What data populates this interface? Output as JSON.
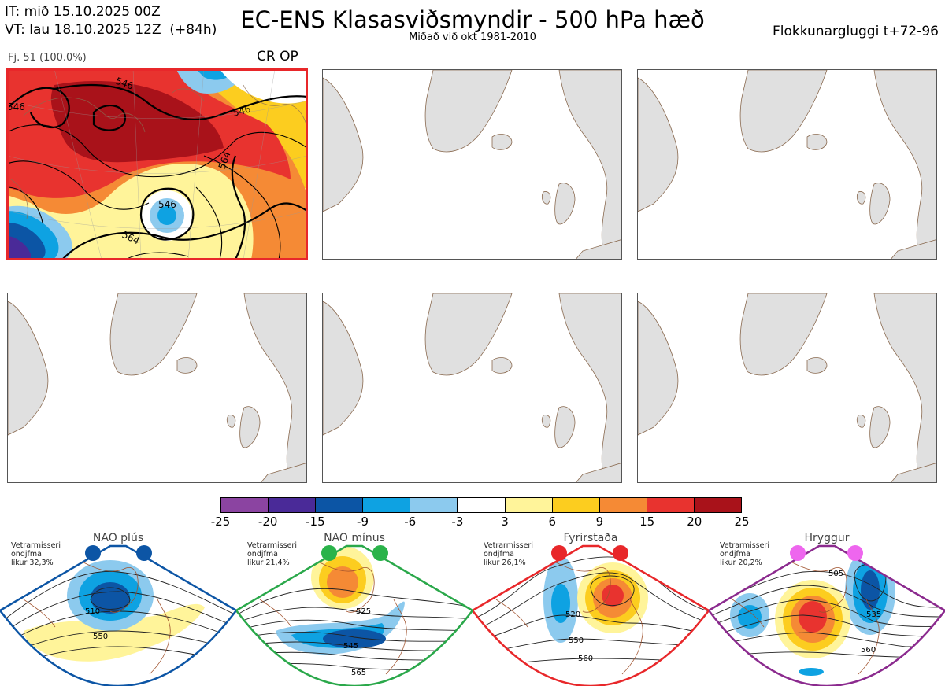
{
  "header": {
    "it_line": "IT: mið 15.10.2025 00Z",
    "vt_line": "VT: lau 18.10.2025 12Z  (+84h)",
    "title": "EC-ENS Klasasviðsmyndir - 500 hPa hæð",
    "subtitle": "Miðað við okt 1981-2010",
    "window": "Flokkunargluggi t+72-96"
  },
  "cluster1": {
    "members": "Fj. 51 (100.0%)",
    "tag": "CR OP",
    "highlight_color": "#e8272a",
    "contour_labels": [
      "546",
      "546",
      "546",
      "564",
      "546",
      "564"
    ]
  },
  "colorbar": {
    "colors": [
      "#8b44a1",
      "#4a2a98",
      "#0c55a5",
      "#0ea2e2",
      "#8ccaee",
      "#ffffff",
      "#fff49a",
      "#fccd1f",
      "#f58a35",
      "#e8332f",
      "#a9121a"
    ],
    "ticks": [
      "-25",
      "-20",
      "-15",
      "-9",
      "-6",
      "-3",
      "3",
      "6",
      "9",
      "15",
      "20",
      "25"
    ]
  },
  "regimes": [
    {
      "name": "NAO plús",
      "desc": [
        "Vetrarmisseri",
        "ondjfma",
        "líkur 32,3%"
      ],
      "color": "#0c55a5",
      "dot_color": "#0c55a5",
      "labels": [
        "510",
        "550"
      ]
    },
    {
      "name": "NAO mínus",
      "desc": [
        "Vetrarmisseri",
        "ondjfma",
        "líkur 21,4%"
      ],
      "color": "#2aa84a",
      "dot_color": "#2ab34a",
      "labels": [
        "525",
        "545",
        "565"
      ]
    },
    {
      "name": "Fyrirstaða",
      "desc": [
        "Vetrarmisseri",
        "ondjfma",
        "líkur 26,1%"
      ],
      "color": "#e8272a",
      "dot_color": "#e8272a",
      "labels": [
        "520",
        "550",
        "560"
      ]
    },
    {
      "name": "Hryggur",
      "desc": [
        "Vetrarmisseri",
        "ondjfma",
        "líkur 20,2%"
      ],
      "color": "#8b2a8e",
      "dot_color": "#ee66ee",
      "labels": [
        "505",
        "535",
        "560"
      ]
    }
  ]
}
